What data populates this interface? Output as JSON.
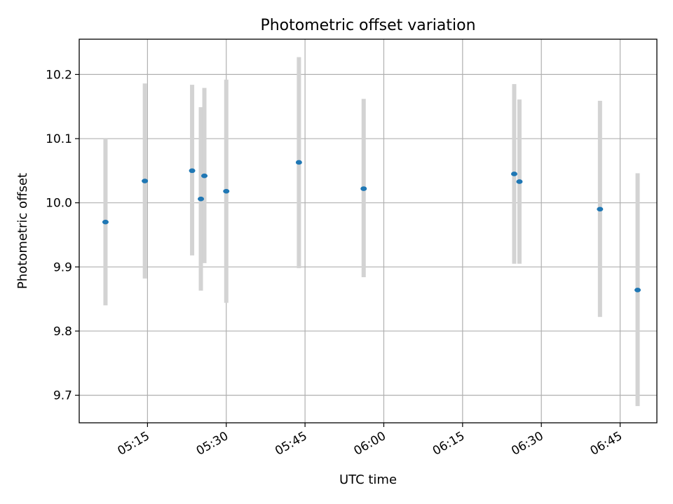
{
  "chart_data": {
    "type": "scatter",
    "title": "Photometric offset variation",
    "xlabel": "UTC time",
    "ylabel": "Photometric offset",
    "x_axis_type": "time",
    "xlim": [
      "05:02",
      "06:52"
    ],
    "ylim": [
      9.657,
      10.255
    ],
    "x_ticks": [
      "05:15",
      "05:30",
      "05:45",
      "06:00",
      "06:15",
      "06:30",
      "06:45"
    ],
    "y_ticks": [
      9.7,
      9.8,
      9.9,
      10.0,
      10.1,
      10.2
    ],
    "y_tick_labels": [
      "9.7",
      "9.8",
      "9.9",
      "10.0",
      "10.1",
      "10.2"
    ],
    "grid": true,
    "legend": "none",
    "marker_color": "#1f77b4",
    "errorbar_color": "#d3d3d3",
    "points": [
      {
        "x": "05:07:00",
        "y": 9.97,
        "yerr_low": 9.84,
        "yerr_high": 10.1
      },
      {
        "x": "05:14:30",
        "y": 10.034,
        "yerr_low": 9.882,
        "yerr_high": 10.186
      },
      {
        "x": "05:23:30",
        "y": 10.05,
        "yerr_low": 9.918,
        "yerr_high": 10.184
      },
      {
        "x": "05:25:10",
        "y": 10.006,
        "yerr_low": 9.863,
        "yerr_high": 10.149
      },
      {
        "x": "05:25:50",
        "y": 10.042,
        "yerr_low": 9.906,
        "yerr_high": 10.179
      },
      {
        "x": "05:30:00",
        "y": 10.018,
        "yerr_low": 9.844,
        "yerr_high": 10.192
      },
      {
        "x": "05:43:50",
        "y": 10.063,
        "yerr_low": 9.898,
        "yerr_high": 10.227
      },
      {
        "x": "05:56:10",
        "y": 10.022,
        "yerr_low": 9.884,
        "yerr_high": 10.162
      },
      {
        "x": "06:24:50",
        "y": 10.045,
        "yerr_low": 9.905,
        "yerr_high": 10.185
      },
      {
        "x": "06:25:50",
        "y": 10.033,
        "yerr_low": 9.905,
        "yerr_high": 10.161
      },
      {
        "x": "06:41:10",
        "y": 9.99,
        "yerr_low": 9.822,
        "yerr_high": 10.159
      },
      {
        "x": "06:48:20",
        "y": 9.864,
        "yerr_low": 9.683,
        "yerr_high": 10.046
      }
    ]
  }
}
